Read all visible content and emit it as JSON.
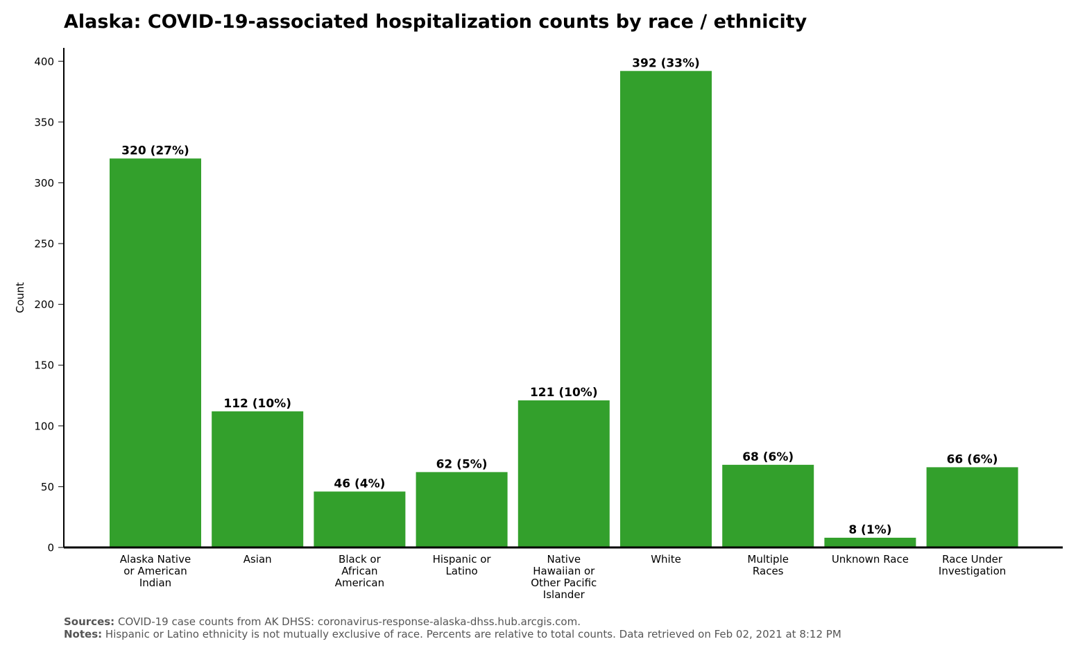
{
  "chart_data": {
    "type": "bar",
    "title": "Alaska: COVID-19-associated hospitalization counts by race / ethnicity",
    "ylabel": "Count",
    "xlabel": "",
    "ylim": [
      0,
      411
    ],
    "yticks": [
      0,
      50,
      100,
      150,
      200,
      250,
      300,
      350,
      400
    ],
    "grid": false,
    "bar_color": "#33a02c",
    "categories": [
      [
        "Alaska Native",
        "or American",
        "Indian"
      ],
      [
        "Asian"
      ],
      [
        "Black or",
        "African",
        "American"
      ],
      [
        "Hispanic or",
        "Latino"
      ],
      [
        "Native",
        "Hawaiian or",
        "Other Pacific",
        "Islander"
      ],
      [
        "White"
      ],
      [
        "Multiple",
        "Races"
      ],
      [
        "Unknown Race"
      ],
      [
        "Race Under",
        "Investigation"
      ]
    ],
    "values": [
      320,
      112,
      46,
      62,
      121,
      392,
      68,
      8,
      66
    ],
    "data_labels": [
      "320 (27%)",
      "112 (10%)",
      "46 (4%)",
      "62 (5%)",
      "121 (10%)",
      "392 (33%)",
      "68 (6%)",
      "8 (1%)",
      "66 (6%)"
    ]
  },
  "footnotes": {
    "sources_label": "Sources:",
    "sources_text": "COVID-19 case counts from AK DHSS: coronavirus-response-alaska-dhss.hub.arcgis.com.",
    "notes_label": "Notes:",
    "notes_text": "Hispanic or Latino ethnicity is not mutually exclusive of race. Percents are relative to total counts. Data retrieved on Feb 02, 2021 at 8:12 PM"
  }
}
